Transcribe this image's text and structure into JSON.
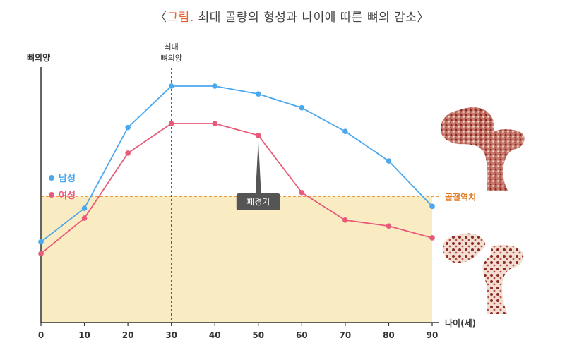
{
  "title": {
    "bracket_open": "〈",
    "highlight": "그림.",
    "rest": " 최대 골량의 형성과 나이에 따른 뼈의 감소",
    "bracket_close": "〉"
  },
  "chart_data": {
    "type": "line",
    "xlabel": "나이(세)",
    "ylabel": "뼈의양",
    "x": [
      0,
      10,
      20,
      30,
      40,
      50,
      60,
      70,
      80,
      90
    ],
    "xlim": [
      0,
      90
    ],
    "ylim": [
      0,
      100
    ],
    "series": [
      {
        "name": "남성",
        "color": "#4aa8ee",
        "values": [
          21,
          38,
          79,
          100,
          100,
          96,
          89,
          77,
          62,
          39
        ]
      },
      {
        "name": "여성",
        "color": "#e85a7a",
        "values": [
          15,
          33,
          66,
          81,
          81,
          75,
          46,
          32,
          29,
          23
        ]
      }
    ],
    "legend": "left",
    "threshold": {
      "label": "골절역치",
      "value": 44,
      "color": "#e89030",
      "fill": "#faecc2"
    },
    "peak": {
      "x": 30,
      "label_line1": "최대",
      "label_line2": "뼈의양"
    },
    "annotation": {
      "label": "폐경기",
      "x": 50,
      "series": "여성"
    },
    "grid": false
  },
  "colors": {
    "axis": "#333333",
    "title_highlight": "#e8622c"
  },
  "icons": [
    "healthy-femur-illustration",
    "fractured-femur-illustration"
  ]
}
